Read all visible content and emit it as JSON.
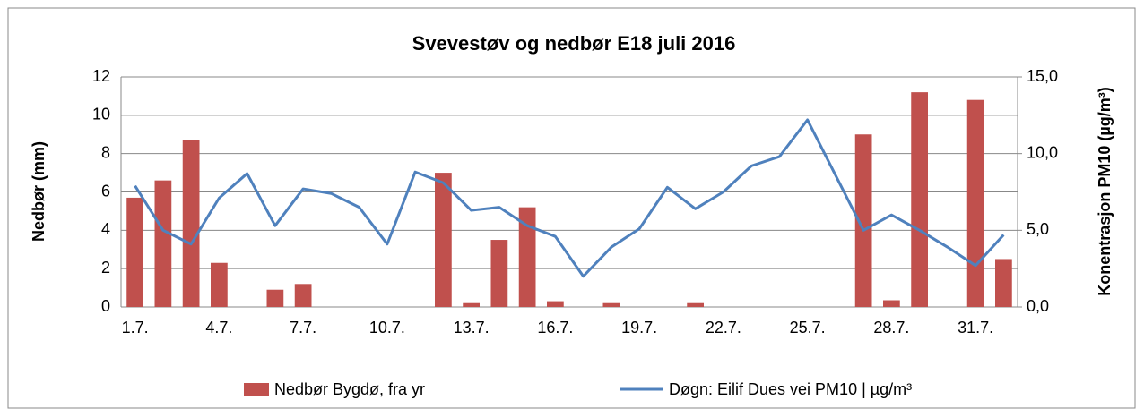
{
  "chart_data": {
    "type": "bar-line",
    "title": "Svevestøv og nedbør E18 juli 2016",
    "y_label": "Nedbør (mm)",
    "y2_label": "Konentrasjon PM10 (µg/m³)",
    "categories": [
      "1.7.",
      null,
      null,
      "4.7.",
      null,
      null,
      "7.7.",
      null,
      null,
      "10.7.",
      null,
      null,
      "13.7.",
      null,
      null,
      "16.7.",
      null,
      null,
      "19.7.",
      null,
      null,
      "22.7.",
      null,
      null,
      "25.7.",
      null,
      null,
      "28.7.",
      null,
      null,
      "31.7.",
      null
    ],
    "series": [
      {
        "name": "Nedbør Bygdø, fra yr",
        "type": "bar",
        "color": "#c0504d",
        "values": [
          5.7,
          6.6,
          8.7,
          2.3,
          0,
          0.9,
          1.2,
          0,
          0,
          0,
          0,
          7.0,
          0.2,
          3.5,
          5.2,
          0.3,
          0,
          0.2,
          0,
          0,
          0.2,
          0,
          0,
          0,
          0,
          0,
          9.0,
          0.35,
          11.2,
          0,
          10.8,
          2.5
        ]
      },
      {
        "name": "Døgn: Eilif Dues vei PM10 | µg/m³",
        "type": "line",
        "color": "#4f81bd",
        "axis": "y2",
        "values": [
          7.9,
          5.0,
          4.1,
          7.1,
          8.7,
          5.3,
          7.7,
          7.4,
          6.5,
          4.1,
          8.8,
          8.1,
          6.3,
          6.5,
          5.3,
          4.6,
          2.0,
          3.9,
          5.1,
          7.8,
          6.4,
          7.5,
          9.2,
          9.8,
          12.2,
          8.6,
          5.0,
          6.0,
          5.0,
          3.9,
          2.7,
          4.7
        ]
      }
    ],
    "ylim": [
      0,
      12
    ],
    "yticks": [
      0,
      2,
      4,
      6,
      8,
      10,
      12
    ],
    "y2lim": [
      0,
      15
    ],
    "y2ticks": [
      {
        "value": 0,
        "label": "0,0"
      },
      {
        "value": 5,
        "label": "5,0"
      },
      {
        "value": 10,
        "label": "10,0"
      },
      {
        "value": 15,
        "label": "15,0"
      }
    ],
    "grid": true,
    "legend": "bottom"
  }
}
